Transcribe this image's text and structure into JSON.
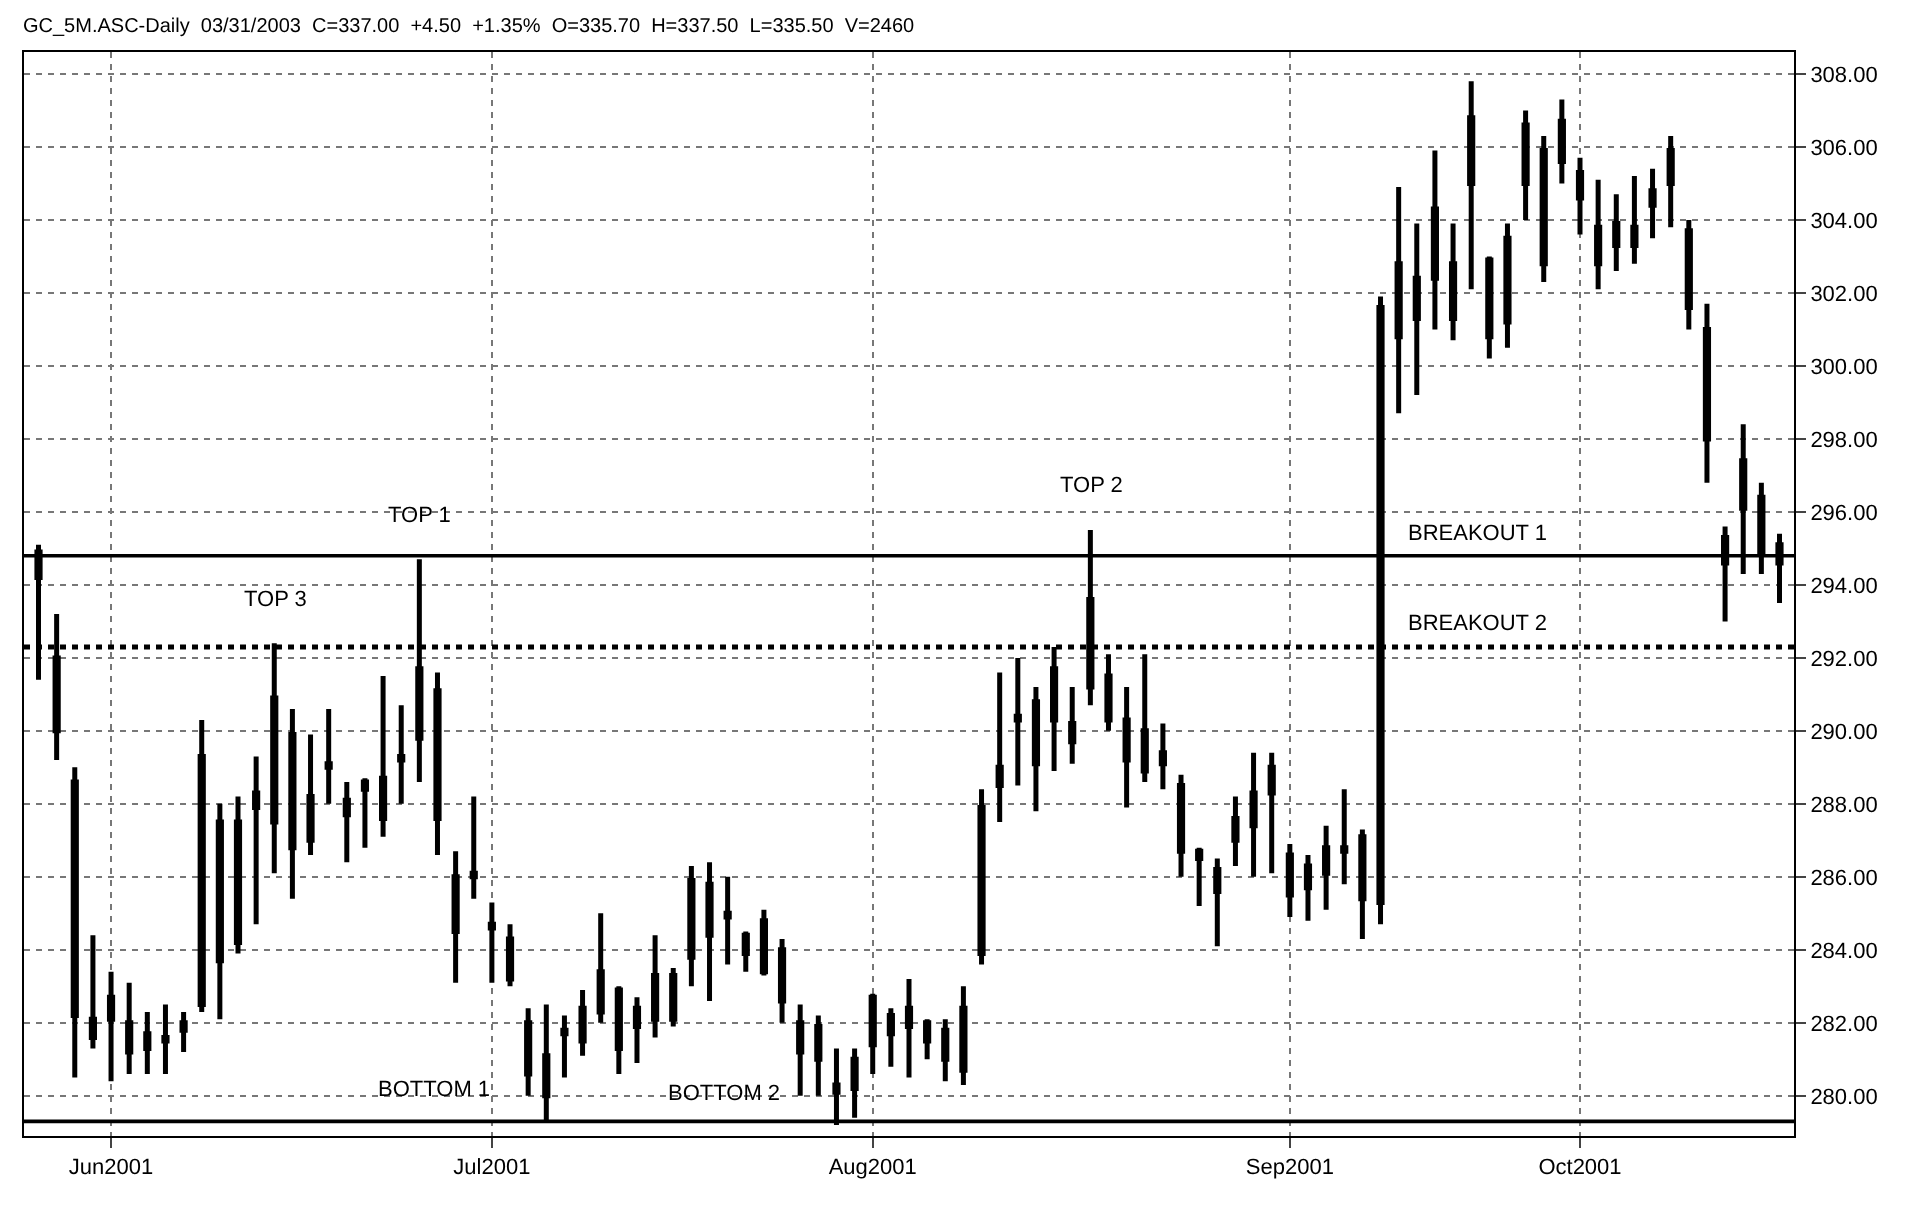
{
  "chart_data": {
    "type": "candlestick",
    "title": "GC_5M.ASC-Daily  03/31/2003  C=337.00  +4.50  +1.35%  O=335.70  H=337.50  L=335.50  V=2460",
    "color": "#000000",
    "grid": true,
    "categories": [
      null,
      null,
      null,
      null,
      "Jun2001",
      null,
      null,
      null,
      null,
      null,
      null,
      null,
      null,
      null,
      null,
      null,
      null,
      null,
      null,
      null,
      null,
      null,
      null,
      null,
      null,
      "Jul2001",
      null,
      null,
      null,
      null,
      null,
      null,
      null,
      null,
      null,
      null,
      null,
      null,
      null,
      null,
      null,
      null,
      null,
      null,
      null,
      null,
      "Aug2001",
      null,
      null,
      null,
      null,
      null,
      null,
      null,
      null,
      null,
      null,
      null,
      null,
      null,
      null,
      null,
      null,
      null,
      null,
      null,
      null,
      null,
      null,
      "Sep2001",
      null,
      null,
      null,
      null,
      null,
      null,
      null,
      null,
      null,
      null,
      null,
      null,
      null,
      null,
      null,
      "Oct2001",
      null,
      null,
      null,
      null,
      null,
      null,
      null,
      null,
      null,
      null,
      null
    ],
    "ohlc": [
      [
        294.9,
        295.1,
        291.4,
        294.2
      ],
      [
        292.0,
        293.2,
        289.2,
        290.0
      ],
      [
        288.6,
        289.0,
        280.5,
        282.2
      ],
      [
        282.1,
        284.4,
        281.3,
        281.6
      ],
      [
        282.7,
        283.4,
        280.4,
        282.1
      ],
      [
        282.0,
        283.1,
        280.6,
        281.2
      ],
      [
        281.3,
        282.3,
        280.6,
        281.7
      ],
      [
        281.6,
        282.5,
        280.6,
        281.5
      ],
      [
        281.8,
        282.3,
        281.2,
        282.0
      ],
      [
        282.5,
        290.3,
        282.3,
        289.3
      ],
      [
        287.5,
        288.0,
        282.1,
        283.7
      ],
      [
        284.2,
        288.2,
        283.9,
        287.5
      ],
      [
        288.3,
        289.3,
        284.7,
        287.9
      ],
      [
        287.5,
        292.4,
        286.1,
        290.9
      ],
      [
        289.9,
        290.6,
        285.4,
        286.8
      ],
      [
        287.0,
        289.9,
        286.6,
        288.2
      ],
      [
        289.0,
        290.6,
        288.0,
        289.1
      ],
      [
        287.7,
        288.6,
        286.4,
        288.1
      ],
      [
        288.4,
        288.7,
        286.8,
        288.6
      ],
      [
        288.7,
        291.5,
        287.1,
        287.6
      ],
      [
        289.2,
        290.7,
        288.0,
        289.3
      ],
      [
        289.8,
        294.7,
        288.6,
        291.7
      ],
      [
        291.1,
        291.6,
        286.6,
        287.6
      ],
      [
        286.0,
        286.7,
        283.1,
        284.5
      ],
      [
        286.0,
        288.2,
        285.4,
        286.1
      ],
      [
        284.7,
        285.3,
        283.1,
        284.6
      ],
      [
        284.3,
        284.7,
        283.0,
        283.2
      ],
      [
        280.6,
        282.4,
        280.0,
        282.0
      ],
      [
        280.0,
        282.5,
        279.3,
        281.1
      ],
      [
        281.8,
        282.2,
        280.5,
        281.7
      ],
      [
        282.4,
        282.9,
        281.1,
        281.5
      ],
      [
        282.3,
        285.0,
        282.0,
        283.4
      ],
      [
        282.9,
        283.0,
        280.6,
        281.3
      ],
      [
        281.9,
        282.7,
        280.9,
        282.4
      ],
      [
        283.3,
        284.4,
        281.6,
        282.1
      ],
      [
        282.1,
        283.5,
        281.9,
        283.3
      ],
      [
        283.8,
        286.3,
        283.0,
        285.9
      ],
      [
        284.4,
        286.4,
        282.6,
        285.8
      ],
      [
        285.0,
        286.0,
        283.6,
        284.9
      ],
      [
        284.4,
        284.5,
        283.4,
        283.9
      ],
      [
        284.8,
        285.1,
        283.3,
        283.4
      ],
      [
        284.0,
        284.3,
        282.0,
        282.6
      ],
      [
        282.0,
        282.5,
        280.0,
        281.2
      ],
      [
        281.9,
        282.2,
        280.0,
        281.0
      ],
      [
        280.3,
        281.3,
        279.2,
        280.1
      ],
      [
        280.2,
        281.3,
        279.4,
        281.0
      ],
      [
        281.4,
        282.8,
        280.6,
        282.7
      ],
      [
        281.7,
        282.4,
        280.8,
        282.2
      ],
      [
        281.9,
        283.2,
        280.5,
        282.4
      ],
      [
        282.0,
        282.1,
        281.0,
        281.5
      ],
      [
        281.8,
        282.1,
        280.4,
        281.0
      ],
      [
        280.7,
        283.0,
        280.3,
        282.4
      ],
      [
        283.9,
        288.4,
        283.6,
        287.9
      ],
      [
        289.0,
        291.6,
        287.5,
        288.5
      ],
      [
        290.4,
        292.0,
        288.5,
        290.3
      ],
      [
        289.1,
        291.2,
        287.8,
        290.8
      ],
      [
        291.7,
        292.3,
        288.9,
        290.3
      ],
      [
        290.2,
        291.2,
        289.1,
        289.7
      ],
      [
        291.2,
        295.5,
        290.7,
        293.6
      ],
      [
        291.5,
        292.1,
        290.0,
        290.3
      ],
      [
        290.3,
        291.2,
        287.9,
        289.2
      ],
      [
        290.0,
        292.1,
        288.6,
        288.9
      ],
      [
        289.1,
        290.2,
        288.4,
        289.4
      ],
      [
        288.5,
        288.8,
        286.0,
        286.7
      ],
      [
        286.5,
        286.8,
        285.2,
        286.7
      ],
      [
        285.6,
        286.5,
        284.1,
        286.2
      ],
      [
        287.0,
        288.2,
        286.3,
        287.6
      ],
      [
        287.4,
        289.4,
        286.0,
        288.3
      ],
      [
        289.0,
        289.4,
        286.1,
        288.3
      ],
      [
        286.6,
        286.9,
        284.9,
        285.5
      ],
      [
        286.3,
        286.6,
        284.8,
        285.7
      ],
      [
        286.1,
        287.4,
        285.1,
        286.8
      ],
      [
        286.7,
        288.4,
        285.8,
        286.8
      ],
      [
        287.1,
        287.3,
        284.3,
        285.4
      ],
      [
        285.3,
        301.9,
        284.7,
        301.6
      ],
      [
        302.8,
        304.9,
        298.7,
        300.8
      ],
      [
        302.4,
        303.9,
        299.2,
        301.3
      ],
      [
        302.4,
        305.9,
        301.0,
        304.3
      ],
      [
        302.8,
        303.9,
        300.7,
        301.3
      ],
      [
        306.8,
        307.8,
        302.1,
        305.0
      ],
      [
        300.8,
        303.0,
        300.2,
        302.9
      ],
      [
        301.2,
        303.9,
        300.5,
        303.5
      ],
      [
        305.0,
        307.0,
        304.0,
        306.6
      ],
      [
        302.8,
        306.3,
        302.3,
        305.9
      ],
      [
        306.7,
        307.3,
        305.0,
        305.6
      ],
      [
        304.6,
        305.7,
        303.6,
        305.3
      ],
      [
        303.8,
        305.1,
        302.1,
        302.8
      ],
      [
        303.9,
        304.7,
        302.6,
        303.3
      ],
      [
        303.8,
        305.2,
        302.8,
        303.3
      ],
      [
        304.8,
        305.4,
        303.5,
        304.4
      ],
      [
        305.9,
        306.3,
        303.8,
        305.0
      ],
      [
        303.7,
        304.0,
        301.0,
        301.6
      ],
      [
        301.0,
        301.7,
        296.8,
        298.0
      ],
      [
        295.3,
        295.6,
        293.0,
        294.6
      ],
      [
        296.1,
        298.4,
        294.3,
        297.4
      ],
      [
        296.4,
        296.8,
        294.3,
        294.9
      ],
      [
        295.1,
        295.4,
        293.5,
        294.6
      ]
    ],
    "ylim": [
      278.9,
      308.6
    ],
    "yticks": [
      {
        "value": 280,
        "label": "280.00"
      },
      {
        "value": 282,
        "label": "282.00"
      },
      {
        "value": 284,
        "label": "284.00"
      },
      {
        "value": 286,
        "label": "286.00"
      },
      {
        "value": 288,
        "label": "288.00"
      },
      {
        "value": 290,
        "label": "290.00"
      },
      {
        "value": 292,
        "label": "292.00"
      },
      {
        "value": 294,
        "label": "294.00"
      },
      {
        "value": 296,
        "label": "296.00"
      },
      {
        "value": 298,
        "label": "298.00"
      },
      {
        "value": 300,
        "label": "300.00"
      },
      {
        "value": 302,
        "label": "302.00"
      },
      {
        "value": 304,
        "label": "304.00"
      },
      {
        "value": 306,
        "label": "306.00"
      },
      {
        "value": 308,
        "label": "308.00"
      }
    ],
    "ref_lines": [
      {
        "axis": "y",
        "value": 294.8,
        "label": "BREAKOUT 1",
        "color": "#000000",
        "line_style": "solid"
      },
      {
        "axis": "y",
        "value": 292.3,
        "label": "BREAKOUT 2",
        "color": "#000000",
        "line_style": "dotted"
      },
      {
        "axis": "y",
        "value": 279.3,
        "label": null,
        "color": "#000000",
        "line_style": "solid"
      }
    ],
    "annotations": [
      {
        "text": "TOP 3",
        "y": 292.4
      },
      {
        "text": "TOP 1",
        "y": 294.7
      },
      {
        "text": "BOTTOM 1",
        "y": 279.3
      },
      {
        "text": "BOTTOM 2",
        "y": 279.2
      },
      {
        "text": "TOP 2",
        "y": 295.5
      }
    ]
  }
}
